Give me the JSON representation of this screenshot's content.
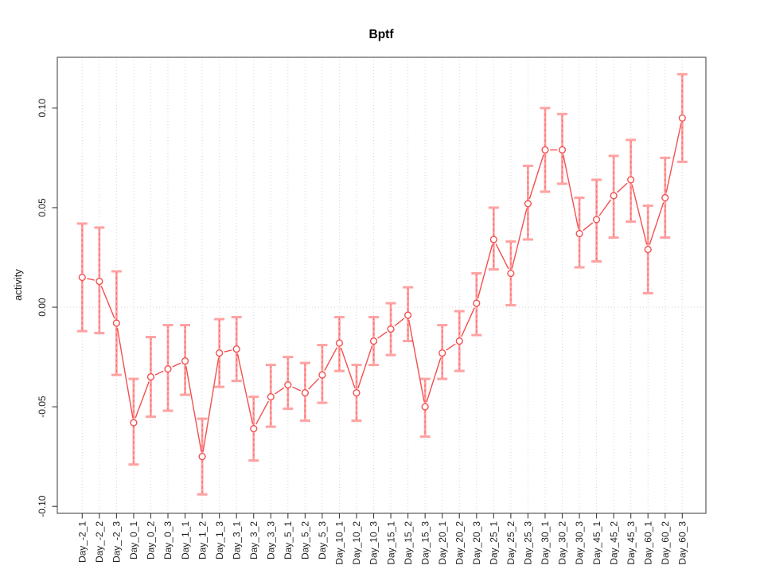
{
  "chart_data": {
    "type": "line",
    "title": "Bptf",
    "xlabel": "",
    "ylabel": "activity",
    "marker": "open-circle",
    "line_style": "points-connected-with-gaps",
    "grid": "vertical-dotted-per-category-plus-dotted-zero-line",
    "legend_position": "none",
    "ylim": [
      -0.1035,
      0.1255
    ],
    "yticks": [
      "-0.10",
      "-0.05",
      "0.00",
      "0.05",
      "0.10"
    ],
    "ytick_values": [
      -0.1,
      -0.05,
      0.0,
      0.05,
      0.1
    ],
    "categories": [
      "Day_-2_1",
      "Day_-2_2",
      "Day_-2_3",
      "Day_0_1",
      "Day_0_2",
      "Day_0_3",
      "Day_1_1",
      "Day_1_2",
      "Day_1_3",
      "Day_3_1",
      "Day_3_2",
      "Day_3_3",
      "Day_5_1",
      "Day_5_2",
      "Day_5_3",
      "Day_10_1",
      "Day_10_2",
      "Day_10_3",
      "Day_15_1",
      "Day_15_2",
      "Day_15_3",
      "Day_20_1",
      "Day_20_2",
      "Day_20_3",
      "Day_25_1",
      "Day_25_2",
      "Day_25_3",
      "Day_30_1",
      "Day_30_2",
      "Day_30_3",
      "Day_45_1",
      "Day_45_2",
      "Day_45_3",
      "Day_60_1",
      "Day_60_2",
      "Day_60_3"
    ],
    "series": [
      {
        "name": "activity",
        "values": [
          0.015,
          0.013,
          -0.008,
          -0.058,
          -0.035,
          -0.031,
          -0.027,
          -0.075,
          -0.023,
          -0.021,
          -0.061,
          -0.045,
          -0.039,
          -0.043,
          -0.034,
          -0.018,
          -0.043,
          -0.017,
          -0.011,
          -0.004,
          -0.05,
          -0.023,
          -0.017,
          0.002,
          0.034,
          0.017,
          0.052,
          0.079,
          0.079,
          0.037,
          0.044,
          0.056,
          0.064,
          0.029,
          0.055,
          0.095
        ],
        "error_high": [
          0.042,
          0.04,
          0.018,
          -0.036,
          -0.015,
          -0.009,
          -0.009,
          -0.056,
          -0.006,
          -0.005,
          -0.045,
          -0.029,
          -0.025,
          -0.028,
          -0.019,
          -0.005,
          -0.029,
          -0.005,
          0.002,
          0.01,
          -0.036,
          -0.009,
          -0.002,
          0.017,
          0.05,
          0.033,
          0.071,
          0.1,
          0.097,
          0.055,
          0.064,
          0.076,
          0.084,
          0.051,
          0.075,
          0.117
        ],
        "error_low": [
          -0.012,
          -0.013,
          -0.034,
          -0.079,
          -0.055,
          -0.052,
          -0.044,
          -0.094,
          -0.04,
          -0.037,
          -0.077,
          -0.06,
          -0.051,
          -0.057,
          -0.048,
          -0.032,
          -0.057,
          -0.029,
          -0.024,
          -0.017,
          -0.065,
          -0.036,
          -0.032,
          -0.014,
          0.019,
          0.001,
          0.034,
          0.058,
          0.062,
          0.02,
          0.023,
          0.035,
          0.043,
          0.007,
          0.035,
          0.073
        ]
      }
    ],
    "colors": {
      "series": "#f25050",
      "error_bar": "#ffa2a2",
      "error_bar_dash": "#ff6b6b",
      "gridline": "#d6d6d6",
      "zero_line": "#cfcfcf",
      "axis_box": "#595959",
      "tick": "#3f3f3f",
      "tick_label": "#1f1f1f",
      "title": "#000000"
    }
  }
}
